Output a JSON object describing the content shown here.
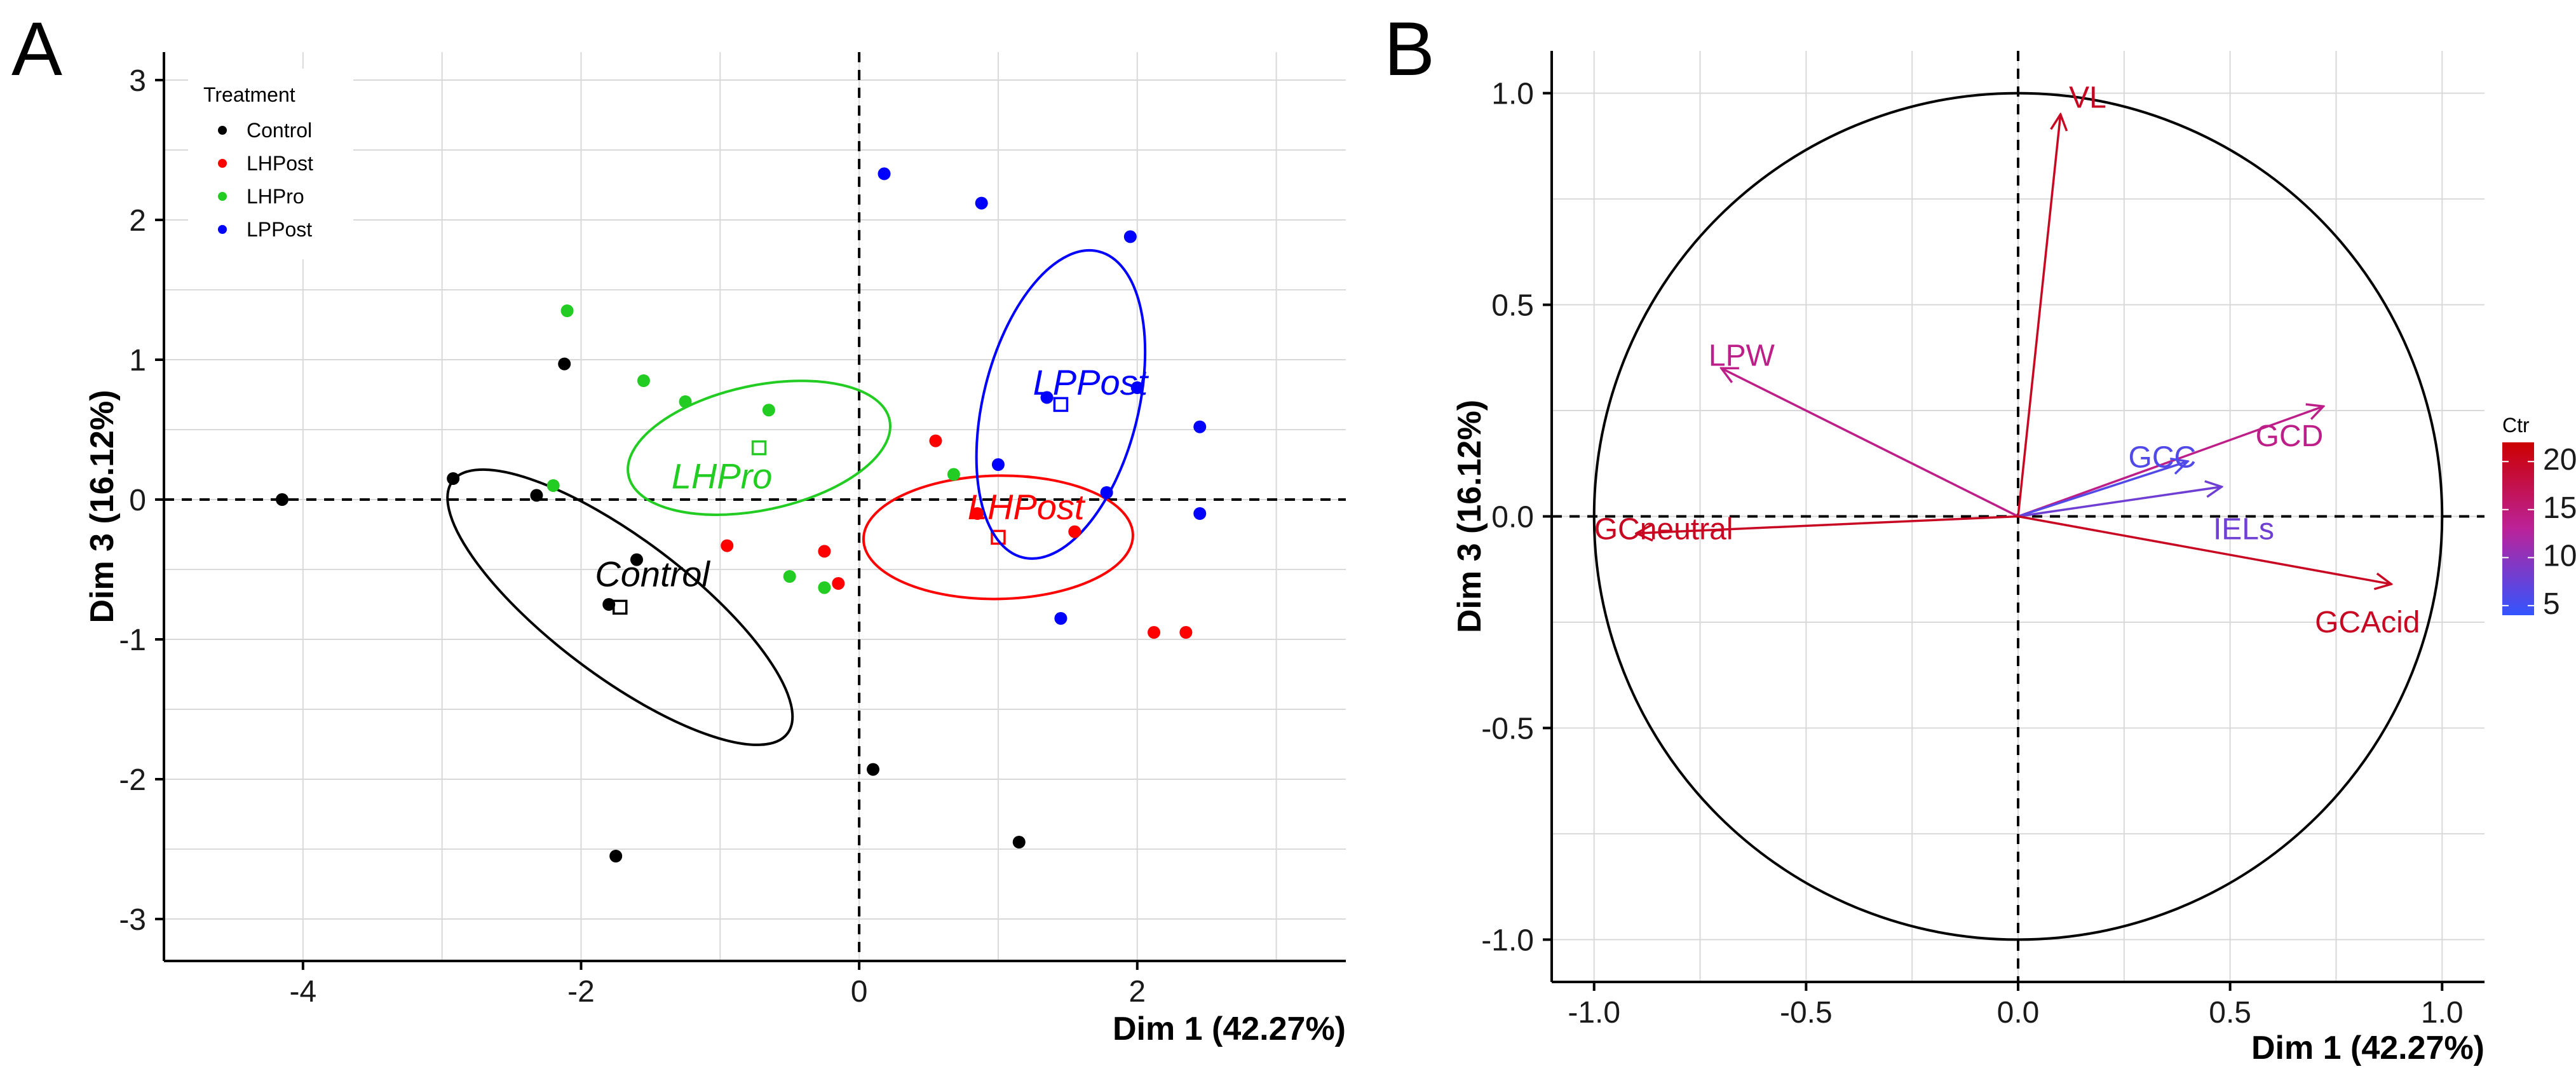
{
  "panels": {
    "a": "A",
    "b": "B"
  },
  "chart_data": [
    {
      "type": "scatter",
      "panel": "A",
      "xlabel": "Dim 1 (42.27%)",
      "ylabel": "Dim 3 (16.12%)",
      "xlim": [
        -5.0,
        3.5
      ],
      "ylim": [
        -3.3,
        3.2
      ],
      "xticks": [
        -4,
        -2,
        0,
        2
      ],
      "yticks": [
        -3,
        -2,
        -1,
        0,
        1,
        2,
        3
      ],
      "grid": true,
      "legend": {
        "title": "Treatment",
        "position": "top-left"
      },
      "series": [
        {
          "name": "Control",
          "color": "#000000",
          "points": [
            [
              -4.15,
              0.0
            ],
            [
              -2.92,
              0.15
            ],
            [
              -2.32,
              0.03
            ],
            [
              -2.12,
              0.97
            ],
            [
              -1.6,
              -0.43
            ],
            [
              -1.8,
              -0.75
            ],
            [
              -1.75,
              -2.55
            ],
            [
              0.1,
              -1.93
            ],
            [
              1.15,
              -2.45
            ]
          ],
          "ellipse": {
            "center": [
              -1.72,
              -0.77
            ],
            "label": "Control",
            "label_at": [
              -1.9,
              -0.62
            ],
            "label_anchor": "start"
          }
        },
        {
          "name": "LHPost",
          "color": "#ff0000",
          "points": [
            [
              0.55,
              0.42
            ],
            [
              -0.95,
              -0.33
            ],
            [
              -0.25,
              -0.37
            ],
            [
              -0.15,
              -0.6
            ],
            [
              0.85,
              -0.1
            ],
            [
              1.55,
              -0.23
            ],
            [
              2.12,
              -0.95
            ],
            [
              2.35,
              -0.95
            ]
          ],
          "ellipse": {
            "center": [
              1.0,
              -0.27
            ],
            "label": "LHPost",
            "label_at": [
              0.78,
              -0.14
            ],
            "label_anchor": "start"
          }
        },
        {
          "name": "LHPro",
          "color": "#22cc22",
          "points": [
            [
              -2.1,
              1.35
            ],
            [
              -1.55,
              0.85
            ],
            [
              -1.25,
              0.7
            ],
            [
              -0.65,
              0.64
            ],
            [
              -2.2,
              0.1
            ],
            [
              0.68,
              0.18
            ],
            [
              -0.5,
              -0.55
            ],
            [
              -0.25,
              -0.63
            ]
          ],
          "ellipse": {
            "center": [
              -0.72,
              0.37
            ],
            "label": "LHPro",
            "label_at": [
              -1.35,
              0.08
            ],
            "label_anchor": "start"
          }
        },
        {
          "name": "LPPost",
          "color": "#0000ff",
          "points": [
            [
              0.18,
              2.33
            ],
            [
              0.88,
              2.12
            ],
            [
              1.95,
              1.88
            ],
            [
              1.35,
              0.73
            ],
            [
              2.45,
              0.52
            ],
            [
              1.0,
              0.25
            ],
            [
              1.78,
              0.05
            ],
            [
              2.45,
              -0.1
            ],
            [
              1.45,
              -0.85
            ],
            [
              2.0,
              0.8
            ]
          ],
          "ellipse": {
            "center": [
              1.45,
              0.68
            ],
            "label": "LPPost",
            "label_at": [
              1.25,
              0.75
            ],
            "label_anchor": "start"
          }
        }
      ]
    },
    {
      "type": "variable_factor_map",
      "panel": "B",
      "xlabel": "Dim 1 (42.27%)",
      "ylabel": "Dim 3 (16.12%)",
      "xlim": [
        -1.1,
        1.1
      ],
      "ylim": [
        -1.1,
        1.1
      ],
      "xticks": [
        "-1.0",
        "-0.5",
        "0.0",
        "0.5",
        "1.0"
      ],
      "yticks": [
        "-1.0",
        "-0.5",
        "0.0",
        "0.5",
        "1.0"
      ],
      "grid": true,
      "colorbar": {
        "title": "Ctr",
        "range": [
          4,
          22
        ],
        "ticks": [
          5,
          10,
          15,
          20
        ],
        "low_color": "#3355ff",
        "mid_color": "#bb2299",
        "high_color": "#cc0000"
      },
      "variables": [
        {
          "name": "VL",
          "x": 0.1,
          "y": 0.95,
          "ctr": 20,
          "label_at": [
            0.12,
            0.99
          ]
        },
        {
          "name": "LPW",
          "x": -0.7,
          "y": 0.35,
          "ctr": 14,
          "label_at": [
            -0.73,
            0.38
          ]
        },
        {
          "name": "GCD",
          "x": 0.72,
          "y": 0.26,
          "ctr": 14,
          "label_at": [
            0.56,
            0.19
          ]
        },
        {
          "name": "GCC",
          "x": 0.4,
          "y": 0.13,
          "ctr": 6,
          "label_at": [
            0.26,
            0.14
          ]
        },
        {
          "name": "IELs",
          "x": 0.48,
          "y": 0.07,
          "ctr": 8,
          "label_at": [
            0.46,
            -0.03
          ]
        },
        {
          "name": "GCneutral",
          "x": -0.9,
          "y": -0.04,
          "ctr": 20,
          "label_at": [
            -1.0,
            -0.03
          ]
        },
        {
          "name": "GCAcid",
          "x": 0.88,
          "y": -0.16,
          "ctr": 20,
          "label_at": [
            0.7,
            -0.25
          ]
        }
      ]
    }
  ]
}
